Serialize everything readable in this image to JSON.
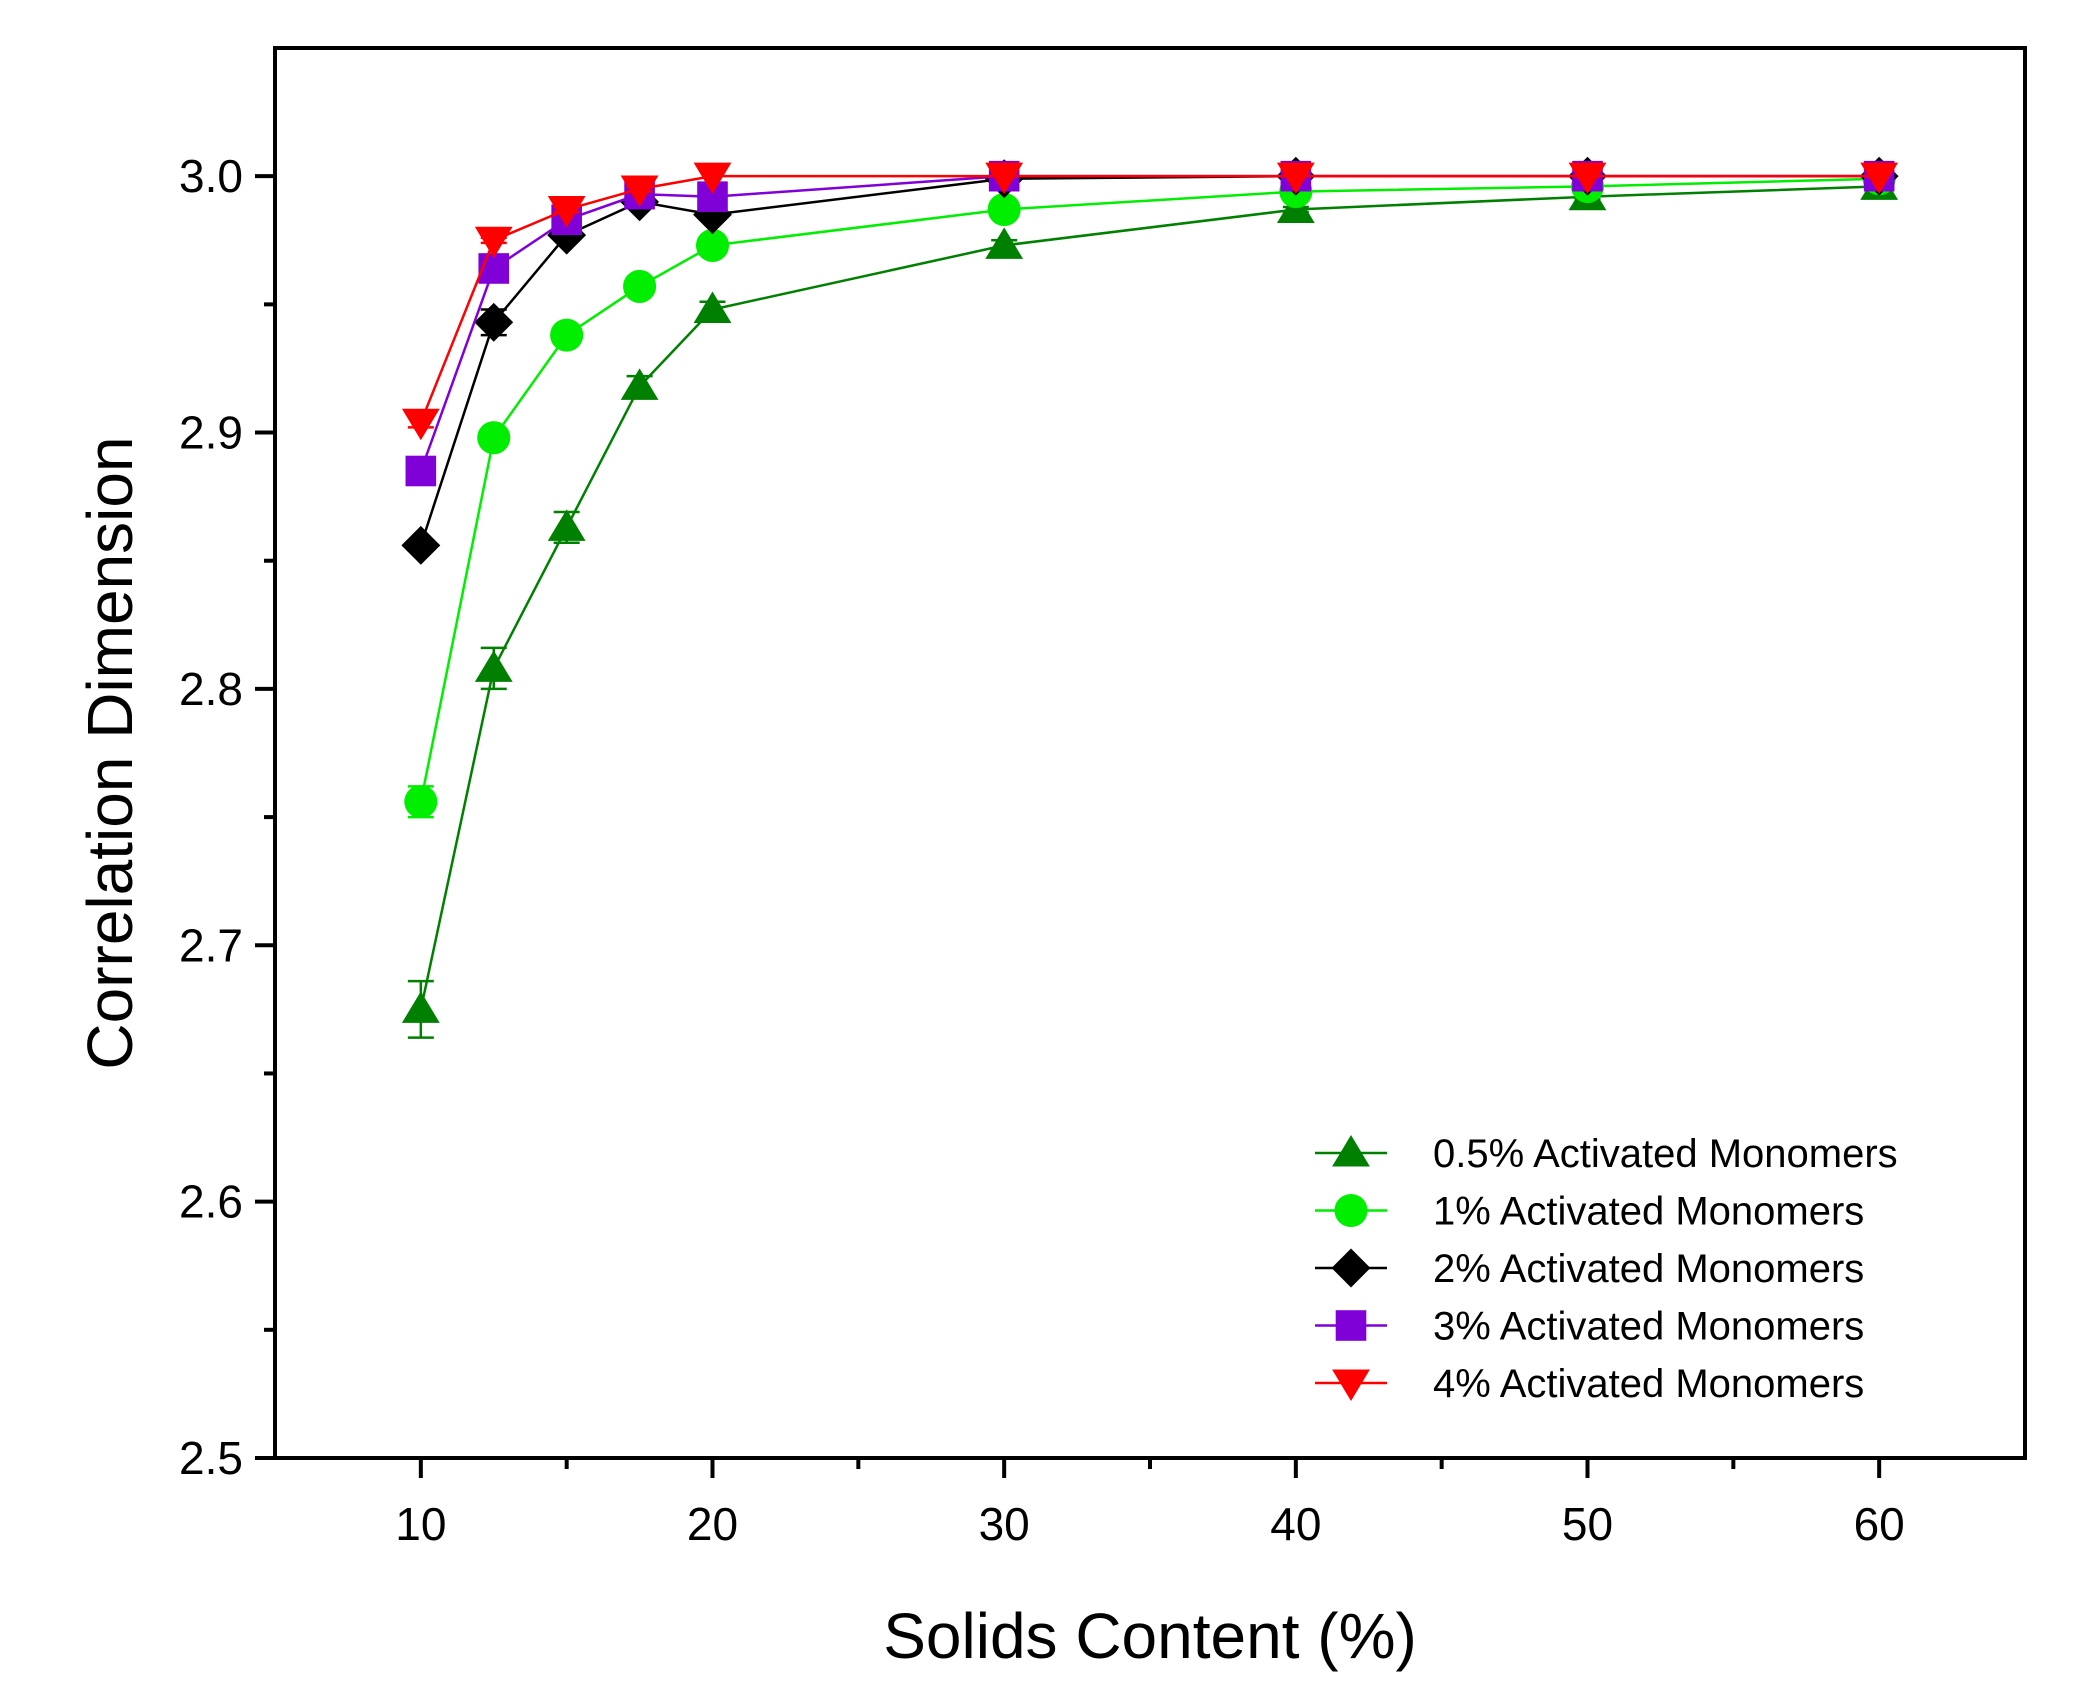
{
  "chart_data": {
    "type": "line",
    "title": "",
    "xlabel": "Solids Content (%)",
    "ylabel": "Correlation Dimension",
    "xlim": [
      5,
      65
    ],
    "ylim": [
      2.5,
      3.05
    ],
    "xticks": [
      10,
      20,
      30,
      40,
      50,
      60
    ],
    "xtick_labels": [
      "10",
      "20",
      "30",
      "40",
      "50",
      "60"
    ],
    "xminor": [
      15,
      25,
      35,
      45,
      55
    ],
    "yticks": [
      2.5,
      2.6,
      2.7,
      2.8,
      2.9,
      3.0
    ],
    "ytick_labels": [
      "2.5",
      "2.6",
      "2.7",
      "2.8",
      "2.9",
      "3.0"
    ],
    "yminor": [
      2.55,
      2.65,
      2.75,
      2.85,
      2.95
    ],
    "grid": false,
    "legend_position": "bottom-right",
    "x": [
      10,
      12.5,
      15,
      17.5,
      20,
      30,
      40,
      50,
      60
    ],
    "series": [
      {
        "name": "0.5% Activated Monomers",
        "color": "#008000",
        "marker": "triangle-up",
        "values": [
          2.675,
          2.808,
          2.863,
          2.918,
          2.948,
          2.973,
          2.987,
          2.992,
          2.996
        ],
        "errors": [
          0.011,
          0.008,
          0.006,
          0.004,
          0.003,
          0.002,
          0.001,
          0.001,
          0.001
        ]
      },
      {
        "name": "1% Activated Monomers",
        "color": "#00ee00",
        "marker": "circle",
        "values": [
          2.756,
          2.898,
          2.938,
          2.957,
          2.973,
          2.987,
          2.994,
          2.996,
          2.999
        ],
        "errors": [
          0.006,
          0.003,
          0.002,
          0.002,
          0.002,
          0.001,
          0.001,
          0.001,
          0.001
        ]
      },
      {
        "name": "2% Activated Monomers",
        "color": "#000000",
        "marker": "diamond",
        "values": [
          2.856,
          2.943,
          2.977,
          2.99,
          2.985,
          2.999,
          3.0,
          3.0,
          3.0
        ],
        "errors": [
          0.002,
          0.005,
          0.002,
          0.001,
          0.001,
          0.001,
          0.0,
          0.0,
          0.0
        ]
      },
      {
        "name": "3% Activated Monomers",
        "color": "#8000d8",
        "marker": "square",
        "values": [
          2.885,
          2.964,
          2.983,
          2.993,
          2.992,
          3.0,
          3.0,
          3.0,
          3.0
        ],
        "errors": [
          0.002,
          0.002,
          0.001,
          0.001,
          0.001,
          0.0,
          0.0,
          0.0,
          0.0
        ]
      },
      {
        "name": "4% Activated Monomers",
        "color": "#ff0000",
        "marker": "triangle-down",
        "values": [
          2.904,
          2.975,
          2.987,
          2.995,
          3.0,
          3.0,
          3.0,
          3.0,
          3.0
        ],
        "errors": [
          0.002,
          0.001,
          0.001,
          0.001,
          0.0,
          0.0,
          0.0,
          0.0,
          0.0
        ]
      }
    ]
  }
}
